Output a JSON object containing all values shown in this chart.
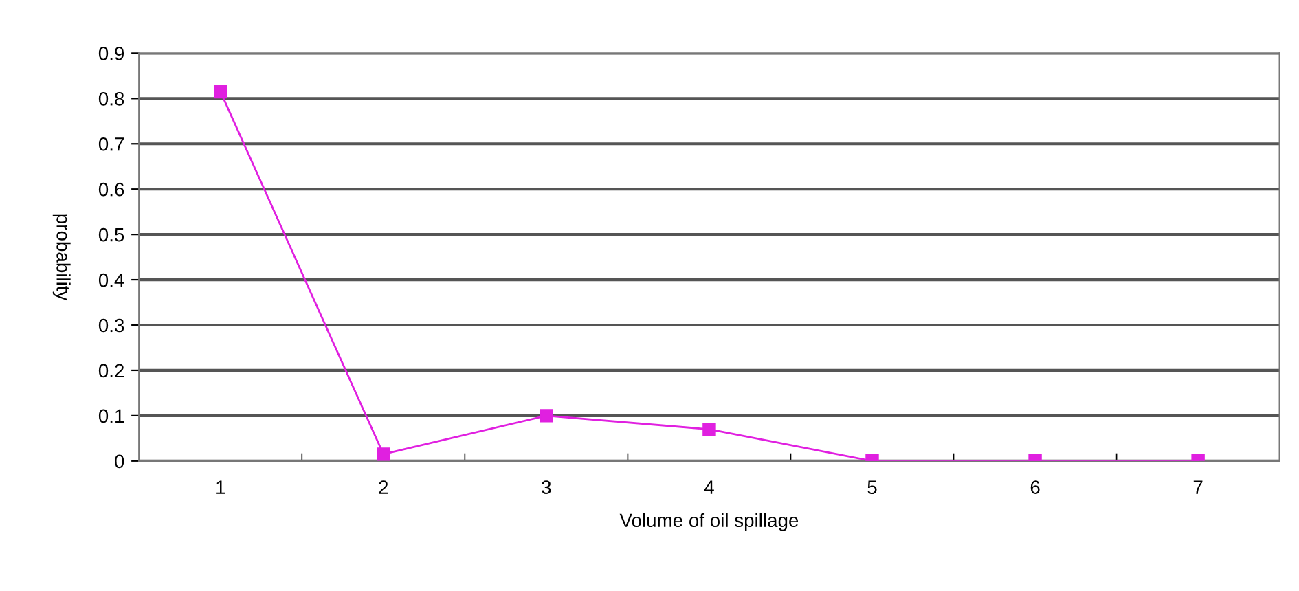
{
  "chart_data": {
    "type": "line",
    "xlabel": "Volume of oil spillage",
    "ylabel": "probability",
    "categories": [
      "1",
      "2",
      "3",
      "4",
      "5",
      "6",
      "7"
    ],
    "series": [
      {
        "color": "#e020e0",
        "values": [
          0.815,
          0.015,
          0.1,
          0.07,
          0,
          0,
          0
        ]
      }
    ],
    "ylim": [
      0,
      0.9
    ],
    "yticks": [
      0,
      0.1,
      0.2,
      0.3,
      0.4,
      0.5,
      0.6,
      0.7,
      0.8,
      0.9
    ],
    "grid": "y",
    "marker": "square",
    "line_style": "solid"
  }
}
